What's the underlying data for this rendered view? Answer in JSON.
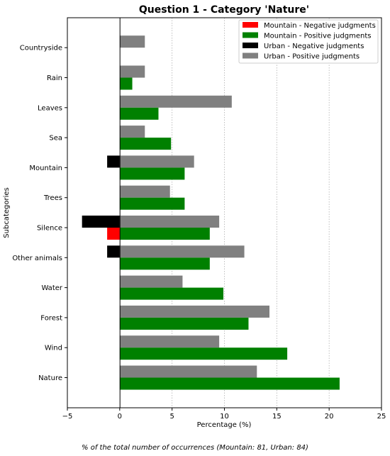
{
  "chart_data": {
    "type": "bar",
    "orientation": "horizontal",
    "title": "Question 1 - Category 'Nature'",
    "xlabel": "Percentage (%)",
    "ylabel": "Subcategories",
    "caption": "% of the total number of occurrences (Mountain: 81, Urban: 84)",
    "xlim": [
      -5,
      25
    ],
    "xticks": [
      -5,
      0,
      5,
      10,
      15,
      20,
      25
    ],
    "grid": "x-axis vertical dotted lines",
    "legend_position": "top-right",
    "categories": [
      "Countryside",
      "Rain",
      "Leaves",
      "Sea",
      "Mountain",
      "Trees",
      "Silence",
      "Other animals",
      "Water",
      "Forest",
      "Wind",
      "Nature"
    ],
    "series": [
      {
        "name": "Mountain - Negative judgments",
        "color": "#ff0000",
        "values": [
          0,
          0,
          0,
          0,
          0,
          0,
          -1.2,
          0,
          0,
          0,
          0,
          0
        ]
      },
      {
        "name": "Mountain - Positive judgments",
        "color": "#008000",
        "values": [
          0,
          1.2,
          3.7,
          4.9,
          6.2,
          6.2,
          8.6,
          8.6,
          9.9,
          12.3,
          16.0,
          21.0
        ]
      },
      {
        "name": "Urban - Negative judgments",
        "color": "#000000",
        "values": [
          0,
          0,
          0,
          0,
          -1.2,
          0,
          -3.6,
          -1.2,
          0,
          0,
          0,
          0
        ]
      },
      {
        "name": "Urban - Positive judgments",
        "color": "#808080",
        "values": [
          2.4,
          2.4,
          10.7,
          2.4,
          7.1,
          4.8,
          9.5,
          11.9,
          6.0,
          14.3,
          9.5,
          13.1
        ]
      }
    ]
  }
}
